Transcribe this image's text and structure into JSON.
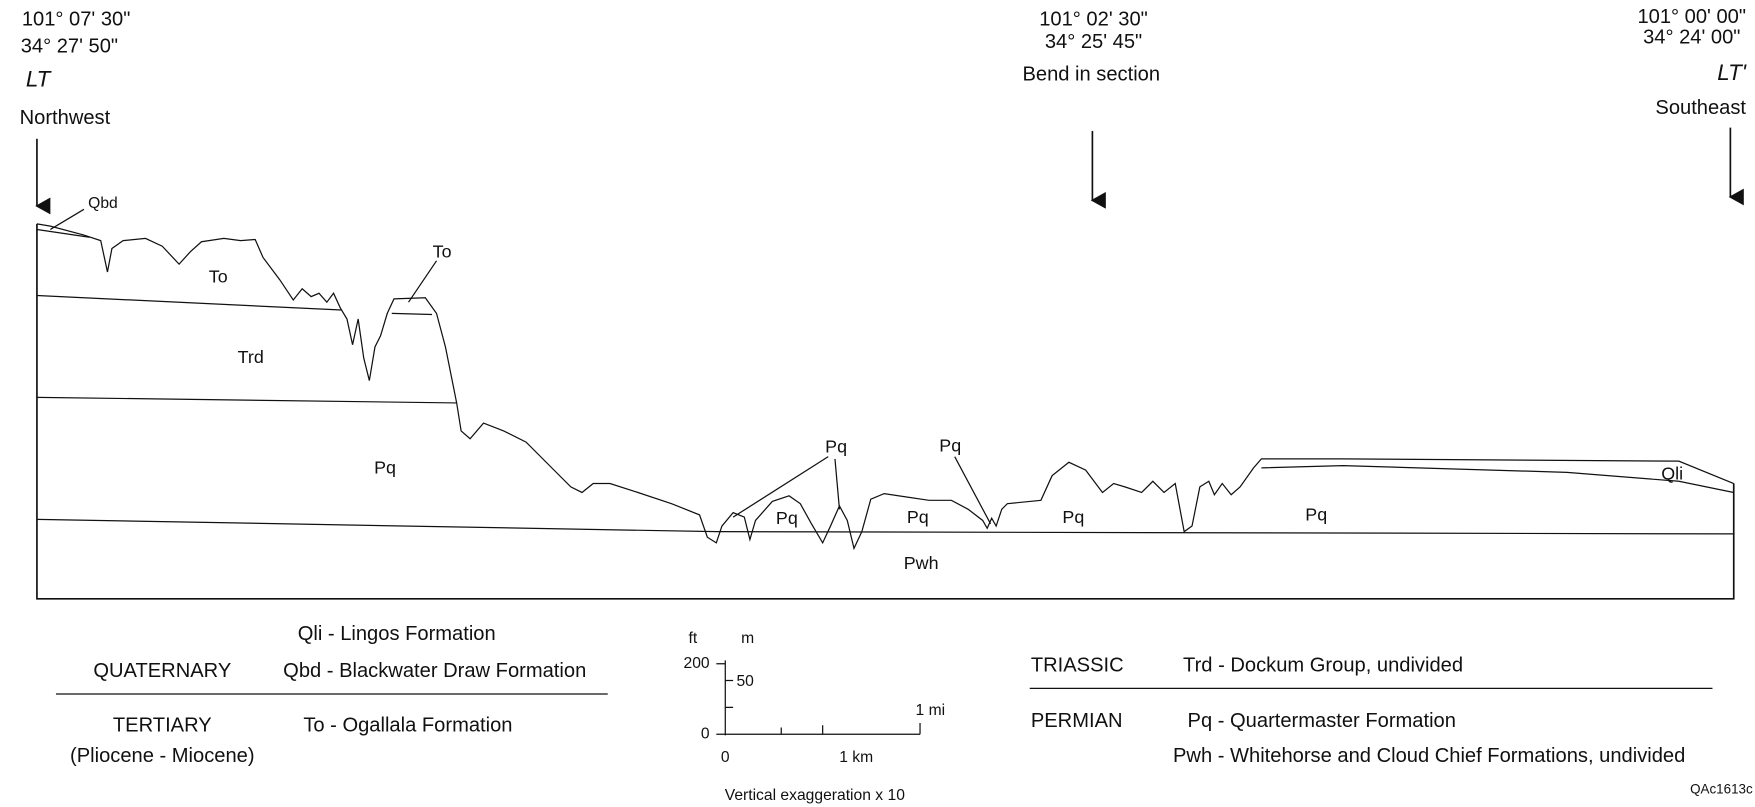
{
  "header": {
    "left": {
      "longitude": "101° 07' 30\"",
      "latitude": "34° 27' 50\"",
      "label": "LT",
      "direction": "Northwest"
    },
    "bend": {
      "longitude": "101° 02' 30\"",
      "latitude": "34° 25' 45\"",
      "label": "Bend in section"
    },
    "right": {
      "longitude": "101° 00' 00\"",
      "latitude": "34° 24' 00\"",
      "label": "LT'",
      "direction": "Southeast"
    }
  },
  "section_labels": [
    "Qbd",
    "To",
    "To",
    "Trd",
    "Pq",
    "Pq",
    "Pq",
    "Pq",
    "Pq",
    "Pq",
    "Pq",
    "Pwh",
    "Qli"
  ],
  "legend": {
    "quaternary": {
      "era": "QUATERNARY",
      "units": [
        "Qli - Lingos Formation",
        "Qbd - Blackwater Draw Formation"
      ]
    },
    "tertiary": {
      "era": "TERTIARY",
      "age": "(Pliocene - Miocene)",
      "units": [
        "To - Ogallala Formation"
      ]
    },
    "triassic": {
      "era": "TRIASSIC",
      "units": [
        "Trd - Dockum Group, undivided"
      ]
    },
    "permian": {
      "era": "PERMIAN",
      "units": [
        "Pq - Quartermaster Formation",
        "Pwh - Whitehorse and Cloud Chief Formations, undivided"
      ]
    }
  },
  "scale": {
    "ft_label": "ft",
    "m_label": "m",
    "ft_top": "200",
    "m_mark": "50",
    "ft_zero": "0",
    "mi_label": "1 mi",
    "h_zero": "0",
    "km_label": "1 km",
    "note": "Vertical exaggeration x 10"
  },
  "figure_id": "QAc1613c"
}
